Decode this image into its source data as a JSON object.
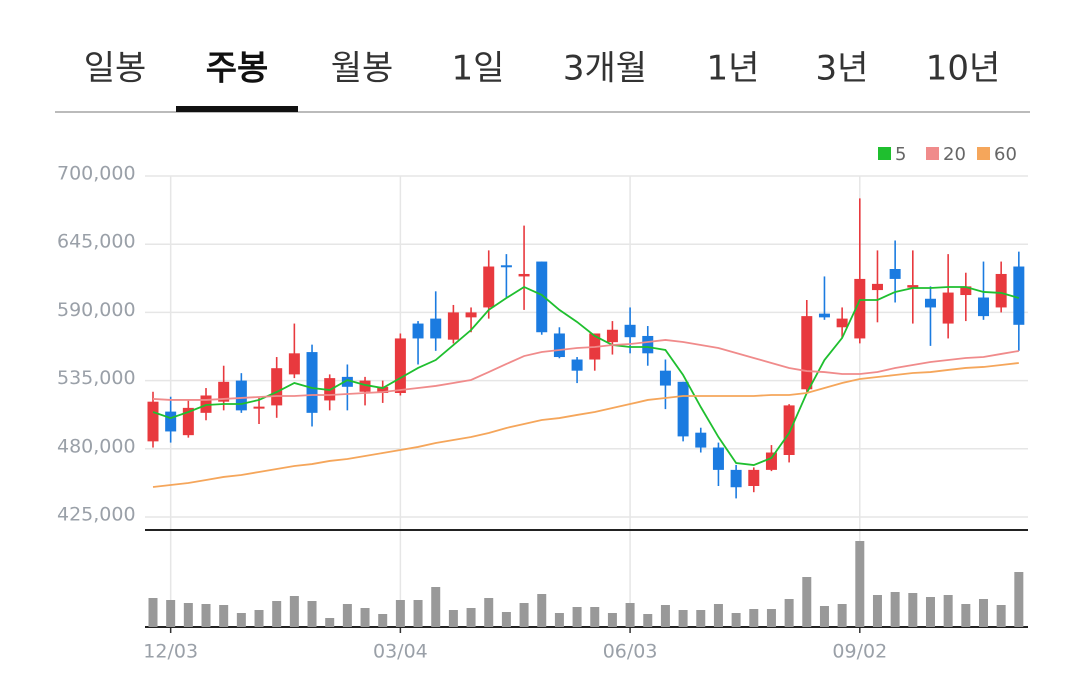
{
  "tabs": {
    "items": [
      "일봉",
      "주봉",
      "월봉",
      "1일",
      "3개월",
      "1년",
      "3년",
      "10년"
    ],
    "selected": 1
  },
  "chart_data": {
    "type": "candlestick",
    "categories": [
      null,
      "12/03",
      null,
      null,
      null,
      null,
      null,
      null,
      null,
      null,
      null,
      null,
      null,
      null,
      "03/04",
      null,
      null,
      null,
      null,
      null,
      null,
      null,
      null,
      null,
      null,
      null,
      null,
      "06/03",
      null,
      null,
      null,
      null,
      null,
      null,
      null,
      null,
      null,
      null,
      null,
      null,
      "09/02",
      null,
      null,
      null,
      null,
      null,
      null,
      null,
      null,
      null
    ],
    "open": [
      486000,
      510000,
      491000,
      509000,
      518000,
      535000,
      513000,
      515000,
      540000,
      558000,
      519000,
      538000,
      526000,
      525000,
      525000,
      581000,
      585000,
      568000,
      586000,
      594000,
      628000,
      619000,
      631000,
      573000,
      552000,
      552000,
      566000,
      580000,
      571000,
      543000,
      534000,
      493000,
      481000,
      463000,
      450000,
      463000,
      475000,
      528000,
      589000,
      578000,
      569000,
      608000,
      625000,
      610000,
      601000,
      581000,
      604000,
      602000,
      594000,
      627000
    ],
    "high": [
      526000,
      522000,
      519000,
      529000,
      547000,
      541000,
      521000,
      554000,
      581000,
      564000,
      540000,
      548000,
      538000,
      535000,
      573000,
      583000,
      607000,
      596000,
      594000,
      640000,
      637000,
      660000,
      631000,
      578000,
      554000,
      573000,
      583000,
      594000,
      579000,
      552000,
      534000,
      497000,
      485000,
      467000,
      465000,
      483000,
      516000,
      600000,
      619000,
      594000,
      682000,
      640000,
      648000,
      640000,
      611000,
      637000,
      622000,
      631000,
      631000,
      639000
    ],
    "low": [
      481000,
      485000,
      489000,
      503000,
      511000,
      509000,
      500000,
      505000,
      537000,
      498000,
      511000,
      511000,
      515000,
      517000,
      523000,
      548000,
      559000,
      565000,
      574000,
      585000,
      602000,
      592000,
      572000,
      553000,
      533000,
      543000,
      556000,
      557000,
      547000,
      512000,
      486000,
      477000,
      450000,
      440000,
      445000,
      462000,
      469000,
      526000,
      584000,
      569000,
      565000,
      582000,
      598000,
      581000,
      563000,
      569000,
      583000,
      584000,
      590000,
      559000
    ],
    "close": [
      518000,
      494000,
      513000,
      523000,
      534000,
      511000,
      514000,
      545000,
      557000,
      509000,
      537000,
      530000,
      535000,
      530000,
      569000,
      569000,
      569000,
      590000,
      590000,
      627000,
      627000,
      621000,
      574000,
      554000,
      543000,
      573000,
      576000,
      570000,
      557000,
      531000,
      490000,
      481000,
      463000,
      449000,
      463000,
      477000,
      515000,
      587000,
      586000,
      585000,
      617000,
      613000,
      617000,
      612000,
      594000,
      606000,
      611000,
      587000,
      621000,
      580000
    ],
    "up_color": "#e8393e",
    "down_color": "#1b7be0",
    "series": [
      {
        "name": "5",
        "color": "#1fbf2f",
        "values": [
          509700,
          504800,
          509700,
          515300,
          516100,
          516100,
          519400,
          525800,
          533100,
          529000,
          527400,
          535400,
          531500,
          529000,
          537100,
          545200,
          551600,
          563700,
          575800,
          592000,
          601600,
          610500,
          604100,
          592000,
          582300,
          571000,
          563700,
          562100,
          562100,
          559700,
          539500,
          513700,
          489500,
          468500,
          466900,
          472600,
          492700,
          525000,
          551600,
          569400,
          600000,
          600000,
          606500,
          609700,
          609700,
          610500,
          610500,
          606500,
          605700,
          601600
        ]
      },
      {
        "name": "20",
        "color": "#f08b8b",
        "values": [
          520200,
          519400,
          519400,
          519400,
          520200,
          521000,
          521800,
          522600,
          522600,
          523400,
          523400,
          524200,
          525000,
          525800,
          527400,
          529000,
          530700,
          533100,
          535500,
          541900,
          548400,
          554800,
          558100,
          559700,
          561300,
          562100,
          563700,
          564500,
          566100,
          567800,
          566100,
          563700,
          561300,
          557300,
          553200,
          549200,
          545200,
          542700,
          541900,
          540300,
          540300,
          541900,
          545200,
          547600,
          550000,
          551600,
          553200,
          554000,
          556500,
          558900
        ]
      },
      {
        "name": "60",
        "color": "#f5a65b",
        "values": [
          449200,
          450800,
          452400,
          454800,
          457300,
          458900,
          461300,
          463700,
          466100,
          467700,
          470200,
          471800,
          474200,
          476600,
          479000,
          481500,
          484700,
          487100,
          489500,
          492700,
          496800,
          500000,
          503200,
          504800,
          507300,
          509700,
          512900,
          516100,
          519400,
          521000,
          522600,
          522600,
          522600,
          522600,
          522600,
          523400,
          523400,
          525000,
          529000,
          533100,
          536300,
          537900,
          539500,
          541100,
          541900,
          543600,
          545200,
          546000,
          547600,
          549200
        ]
      }
    ],
    "volume": {
      "color": "#999999",
      "ylim": [
        0,
        90
      ],
      "values": [
        29,
        27,
        24,
        23,
        22,
        14,
        17,
        26,
        31,
        26,
        9,
        23,
        19,
        13,
        27,
        27,
        40,
        17,
        19,
        29,
        15,
        24,
        33,
        14,
        20,
        20,
        14,
        24,
        13,
        22,
        17,
        17,
        23,
        14,
        18,
        18,
        28,
        50,
        21,
        23,
        86,
        32,
        35,
        34,
        30,
        32,
        23,
        28,
        22,
        55
      ]
    },
    "ylim": [
      425000,
      700000
    ],
    "yticks": [
      {
        "value": 700000,
        "label": "700,000"
      },
      {
        "value": 645000,
        "label": "645,000"
      },
      {
        "value": 590000,
        "label": "590,000"
      },
      {
        "value": 535000,
        "label": "535,000"
      },
      {
        "value": 480000,
        "label": "480,000"
      },
      {
        "value": 425000,
        "label": "425,000"
      }
    ],
    "grid": true
  }
}
